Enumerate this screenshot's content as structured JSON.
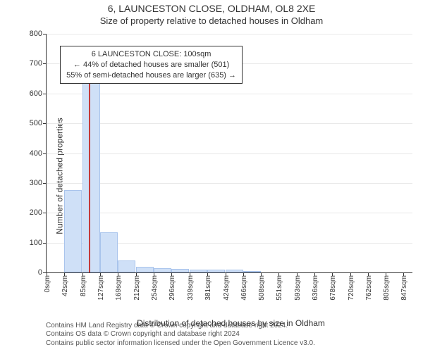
{
  "titles": {
    "line1": "6, LAUNCESTON CLOSE, OLDHAM, OL8 2XE",
    "line2": "Size of property relative to detached houses in Oldham"
  },
  "ylabel": "Number of detached properties",
  "xlabel": "Distribution of detached houses by size in Oldham",
  "footer": {
    "line1": "Contains HM Land Registry data © Crown copyright and database right 2024.",
    "line2": "Contains OS data © Crown copyright and database right 2024",
    "line3": "Contains public sector information licensed under the Open Government Licence v3.0."
  },
  "chart": {
    "type": "histogram",
    "background_color": "#ffffff",
    "grid_color": "#e9e9e9",
    "axis_color": "#333333",
    "bar_fill": "#cfe0f7",
    "bar_stroke": "#a9c4ec",
    "marker_color": "#c43b3b",
    "title_fontsize": 14,
    "subtitle_fontsize": 13,
    "label_fontsize": 12,
    "tick_fontsize": 11,
    "xtick_fontsize": 10,
    "annotation_fontsize": 11,
    "xlim": [
      0,
      868
    ],
    "ylim": [
      0,
      800
    ],
    "ytick_step": 100,
    "yticks": [
      0,
      100,
      200,
      300,
      400,
      500,
      600,
      700,
      800
    ],
    "xticks": [
      0,
      42,
      85,
      127,
      169,
      212,
      254,
      296,
      339,
      381,
      424,
      466,
      508,
      551,
      593,
      636,
      678,
      720,
      762,
      805,
      847
    ],
    "xtick_labels": [
      "0sqm",
      "42sqm",
      "85sqm",
      "127sqm",
      "169sqm",
      "212sqm",
      "254sqm",
      "296sqm",
      "339sqm",
      "381sqm",
      "424sqm",
      "466sqm",
      "508sqm",
      "551sqm",
      "593sqm",
      "636sqm",
      "678sqm",
      "720sqm",
      "762sqm",
      "805sqm",
      "847sqm"
    ],
    "bar_width_data": 42,
    "bars": [
      {
        "x": 0,
        "y": 0
      },
      {
        "x": 42,
        "y": 275
      },
      {
        "x": 85,
        "y": 655
      },
      {
        "x": 127,
        "y": 135
      },
      {
        "x": 169,
        "y": 40
      },
      {
        "x": 212,
        "y": 20
      },
      {
        "x": 254,
        "y": 15
      },
      {
        "x": 296,
        "y": 12
      },
      {
        "x": 339,
        "y": 10
      },
      {
        "x": 381,
        "y": 10
      },
      {
        "x": 424,
        "y": 10
      },
      {
        "x": 466,
        "y": 5
      },
      {
        "x": 508,
        "y": 0
      },
      {
        "x": 551,
        "y": 0
      },
      {
        "x": 593,
        "y": 0
      },
      {
        "x": 636,
        "y": 0
      },
      {
        "x": 678,
        "y": 0
      },
      {
        "x": 720,
        "y": 0
      },
      {
        "x": 762,
        "y": 0
      },
      {
        "x": 805,
        "y": 0
      }
    ],
    "marker_x": 100,
    "marker_height": 680,
    "annotation": {
      "line1": "6 LAUNCESTON CLOSE: 100sqm",
      "line2": "← 44% of detached houses are smaller (501)",
      "line3": "55% of semi-detached houses are larger (635) →",
      "left_data": 32,
      "top_data": 760
    }
  }
}
